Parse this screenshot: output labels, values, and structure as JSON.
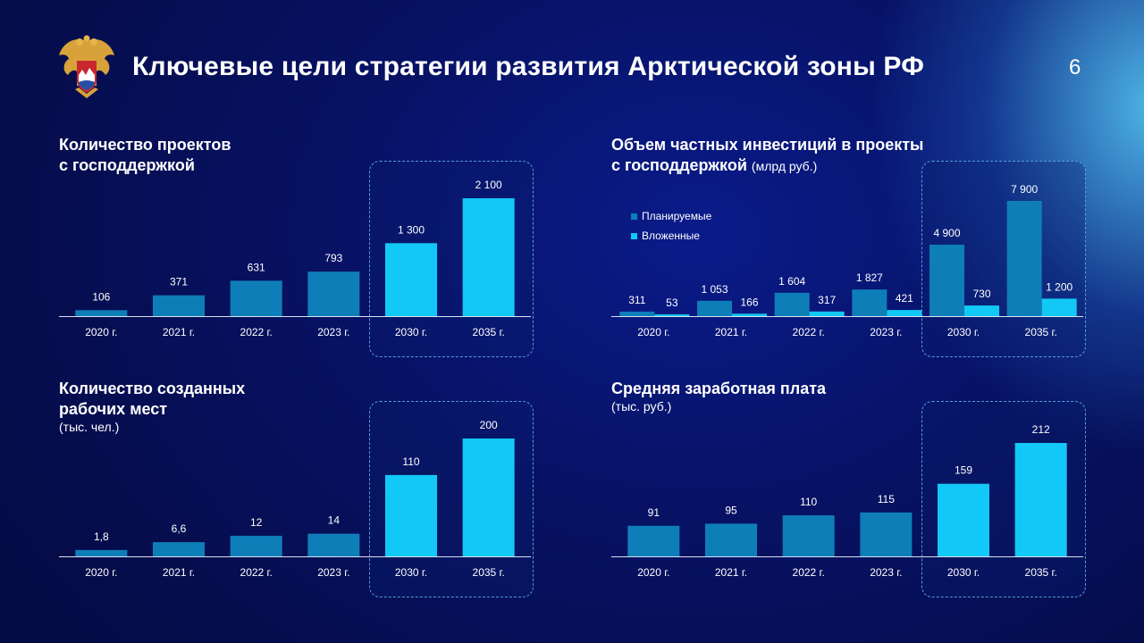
{
  "colors": {
    "base_bar": "#0e7eb8",
    "target_bar": "#12c8f6",
    "axis": "#d8e2f0",
    "emblem_gold": "#d8a23a",
    "emblem_red": "#c8282d",
    "emblem_blue": "#2a4ea8"
  },
  "header": {
    "title": "Ключевые цели стратегии развития Арктической зоны РФ",
    "page_number": "6",
    "emblem_icon": "coat-of-arms-emblem"
  },
  "chart_data": [
    {
      "type": "bar",
      "title_lines": [
        "Количество проектов",
        "с господдержкой"
      ],
      "unit": "",
      "categories": [
        "2020 г.",
        "2021 г.",
        "2022 г.",
        "2023 г.",
        "2030 г.",
        "2035 г."
      ],
      "values": [
        106,
        371,
        631,
        793,
        1300,
        2100
      ],
      "value_labels": [
        "106",
        "371",
        "631",
        "793",
        "1 300",
        "2 100"
      ],
      "highlighted": [
        "2030 г.",
        "2035 г."
      ],
      "ylim": [
        0,
        2100
      ]
    },
    {
      "type": "bar",
      "title_lines": [
        "Объем частных инвестиций в проекты",
        "с господдержкой"
      ],
      "unit": "(млрд руб.)",
      "categories": [
        "2020 г.",
        "2021 г.",
        "2022 г.",
        "2023 г.",
        "2030 г.",
        "2035 г."
      ],
      "series": [
        {
          "name": "Планируемые",
          "values": [
            311,
            1053,
            1604,
            1827,
            4900,
            7900
          ],
          "value_labels": [
            "311",
            "1 053",
            "1 604",
            "1 827",
            "4 900",
            "7 900"
          ]
        },
        {
          "name": "Вложенные",
          "values": [
            53,
            166,
            317,
            421,
            730,
            1200
          ],
          "value_labels": [
            "53",
            "166",
            "317",
            "421",
            "730",
            "1 200"
          ]
        }
      ],
      "highlighted": [
        "2030 г.",
        "2035 г."
      ],
      "ylim": [
        0,
        7900
      ],
      "legend_position": "top-left"
    },
    {
      "type": "bar",
      "title_lines": [
        "Количество созданных",
        "рабочих мест"
      ],
      "unit": "(тыс. чел.)",
      "categories": [
        "2020 г.",
        "2021 г.",
        "2022 г.",
        "2023 г.",
        "2030 г.",
        "2035 г."
      ],
      "values": [
        1.8,
        6.6,
        12,
        14,
        110,
        200
      ],
      "value_labels": [
        "1,8",
        "6,6",
        "12",
        "14",
        "110",
        "200"
      ],
      "highlighted": [
        "2030 г.",
        "2035 г."
      ],
      "ylim": [
        0,
        200
      ],
      "scale_note": "bars drawn on compressed scale as in original"
    },
    {
      "type": "bar",
      "title_lines": [
        "Средняя заработная плата"
      ],
      "unit": "(тыс. руб.)",
      "categories": [
        "2020 г.",
        "2021 г.",
        "2022 г.",
        "2023 г.",
        "2030 г.",
        "2035 г."
      ],
      "values": [
        91,
        95,
        110,
        115,
        159,
        212
      ],
      "value_labels": [
        "91",
        "95",
        "110",
        "115",
        "159",
        "212"
      ],
      "highlighted": [
        "2030 г.",
        "2035 г."
      ],
      "ylim": [
        0,
        212
      ]
    }
  ]
}
